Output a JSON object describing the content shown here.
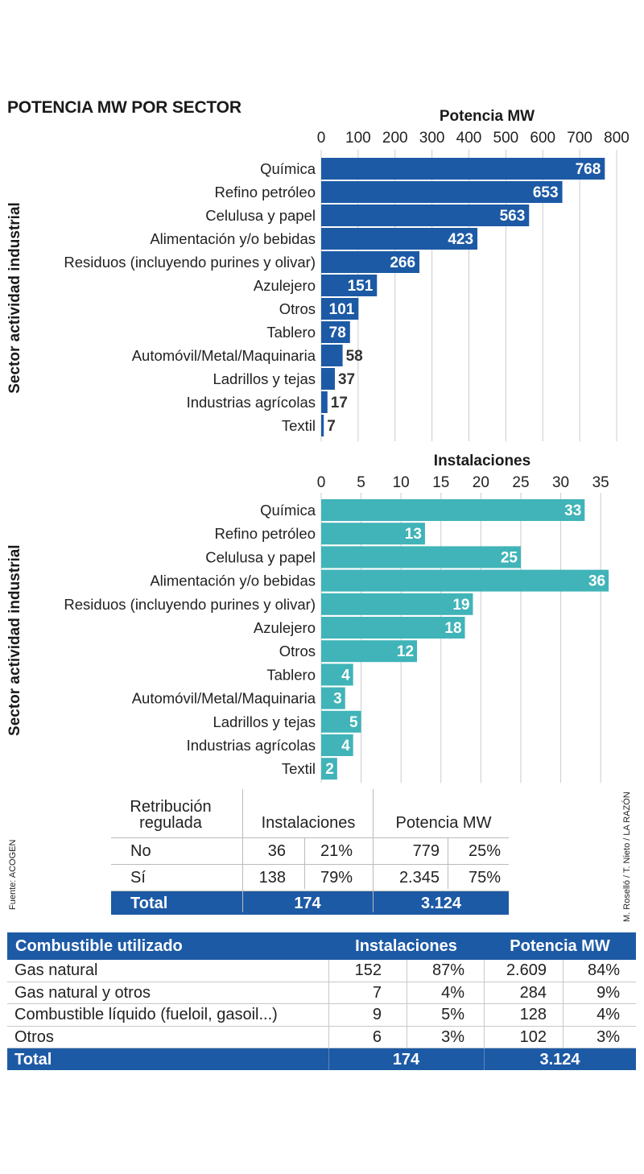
{
  "title": "POTENCIA MW POR SECTOR",
  "source": "Fuente: ACOGEN",
  "credit": "M. Roselló / T. Nieto / LA RAZÓN",
  "colors": {
    "mw_bar": "#1d5aa5",
    "inst_bar": "#40b4b8",
    "grid": "#cccccc",
    "table_total": "#1d5aa5"
  },
  "chart_data": [
    {
      "type": "bar",
      "orientation": "horizontal",
      "title": "Potencia MW",
      "xlabel": "Potencia MW",
      "ylabel": "Sector actividad industrial",
      "xlim": [
        0,
        800
      ],
      "xticks": [
        0,
        100,
        200,
        300,
        400,
        500,
        600,
        700,
        800
      ],
      "categories": [
        "Química",
        "Refino petróleo",
        "Celulusa y papel",
        "Alimentación y/o bebidas",
        "Residuos (incluyendo purines y olivar)",
        "Azulejero",
        "Otros",
        "Tablero",
        "Automóvil/Metal/Maquinaria",
        "Ladrillos y tejas",
        "Industrias agrícolas",
        "Textil"
      ],
      "values": [
        768,
        653,
        563,
        423,
        266,
        151,
        101,
        78,
        58,
        37,
        17,
        7
      ],
      "grid": true
    },
    {
      "type": "bar",
      "orientation": "horizontal",
      "title": "Instalaciones",
      "xlabel": "Instalaciones",
      "ylabel": "Sector actividad industrial",
      "xlim": [
        0,
        37
      ],
      "xticks": [
        0,
        5,
        10,
        15,
        20,
        25,
        30,
        35
      ],
      "categories": [
        "Química",
        "Refino petróleo",
        "Celulusa y papel",
        "Alimentación y/o bebidas",
        "Residuos (incluyendo purines y olivar)",
        "Azulejero",
        "Otros",
        "Tablero",
        "Automóvil/Metal/Maquinaria",
        "Ladrillos y tejas",
        "Industrias agrícolas",
        "Textil"
      ],
      "values": [
        33,
        13,
        25,
        36,
        19,
        18,
        12,
        4,
        3,
        5,
        4,
        2
      ],
      "grid": true
    }
  ],
  "retribution_table": {
    "header": {
      "col1": "Retribución regulada",
      "col2": "Instalaciones",
      "col3": "Potencia MW"
    },
    "rows": [
      {
        "label": "No",
        "inst": "36",
        "inst_pct": "21%",
        "mw": "779",
        "mw_pct": "25%"
      },
      {
        "label": "Sí",
        "inst": "138",
        "inst_pct": "79%",
        "mw": "2.345",
        "mw_pct": "75%"
      }
    ],
    "total": {
      "label": "Total",
      "inst": "174",
      "mw": "3.124"
    }
  },
  "fuel_table": {
    "header": {
      "col1": "Combustible utilizado",
      "col2": "Instalaciones",
      "col3": "Potencia MW"
    },
    "rows": [
      {
        "label": "Gas natural",
        "inst": "152",
        "inst_pct": "87%",
        "mw": "2.609",
        "mw_pct": "84%"
      },
      {
        "label": "Gas natural y otros",
        "inst": "7",
        "inst_pct": "4%",
        "mw": "284",
        "mw_pct": "9%"
      },
      {
        "label": "Combustible líquido (fueloil, gasoil...)",
        "inst": "9",
        "inst_pct": "5%",
        "mw": "128",
        "mw_pct": "4%"
      },
      {
        "label": "Otros",
        "inst": "6",
        "inst_pct": "3%",
        "mw": "102",
        "mw_pct": "3%"
      }
    ],
    "total": {
      "label": "Total",
      "inst": "174",
      "mw": "3.124"
    }
  }
}
